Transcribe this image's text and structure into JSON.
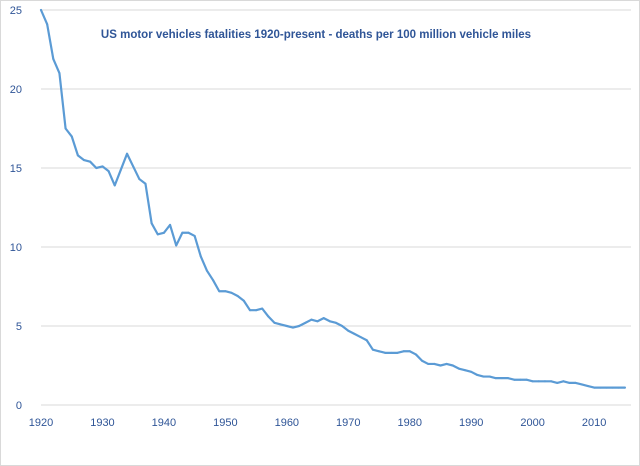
{
  "chart_data": {
    "type": "line",
    "title": "US motor vehicles fatalities 1920-present - deaths per 100 million vehicle miles",
    "xlabel": "",
    "ylabel": "",
    "xlim": [
      1920,
      2016
    ],
    "ylim": [
      0,
      25
    ],
    "x_ticks": [
      "1920",
      "1930",
      "1940",
      "1950",
      "1960",
      "1970",
      "1980",
      "1990",
      "2000",
      "2010"
    ],
    "y_ticks": [
      "0",
      "5",
      "10",
      "15",
      "20",
      "25"
    ],
    "grid": "horizontal",
    "legend": "none",
    "colors": {
      "line": "#5b9bd5",
      "text": "#2f5597",
      "grid": "#d9d9d9"
    },
    "series": [
      {
        "x": [
          1920,
          1921,
          1922,
          1923,
          1924,
          1925,
          1926,
          1927,
          1928,
          1929,
          1930,
          1931,
          1932,
          1933,
          1934,
          1935,
          1936,
          1937,
          1938,
          1939,
          1940,
          1941,
          1942,
          1943,
          1944,
          1945,
          1946,
          1947,
          1948,
          1949,
          1950,
          1951,
          1952,
          1953,
          1954,
          1955,
          1956,
          1957,
          1958,
          1959,
          1960,
          1961,
          1962,
          1963,
          1964,
          1965,
          1966,
          1967,
          1968,
          1969,
          1970,
          1971,
          1972,
          1973,
          1974,
          1975,
          1976,
          1977,
          1978,
          1979,
          1980,
          1981,
          1982,
          1983,
          1984,
          1985,
          1986,
          1987,
          1988,
          1989,
          1990,
          1991,
          1992,
          1993,
          1994,
          1995,
          1996,
          1997,
          1998,
          1999,
          2000,
          2001,
          2002,
          2003,
          2004,
          2005,
          2006,
          2007,
          2008,
          2009,
          2010,
          2011,
          2012,
          2013,
          2014,
          2015
        ],
        "values": [
          25.0,
          24.1,
          21.9,
          21.0,
          17.5,
          17.0,
          15.8,
          15.5,
          15.4,
          15.0,
          15.1,
          14.8,
          13.9,
          14.9,
          15.9,
          15.1,
          14.3,
          14.0,
          11.5,
          10.8,
          10.9,
          11.4,
          10.1,
          10.9,
          10.9,
          10.7,
          9.4,
          8.5,
          7.9,
          7.2,
          7.2,
          7.1,
          6.9,
          6.6,
          6.0,
          6.0,
          6.1,
          5.6,
          5.2,
          5.1,
          5.0,
          4.9,
          5.0,
          5.2,
          5.4,
          5.3,
          5.5,
          5.3,
          5.2,
          5.0,
          4.7,
          4.5,
          4.3,
          4.1,
          3.5,
          3.4,
          3.3,
          3.3,
          3.3,
          3.4,
          3.4,
          3.2,
          2.8,
          2.6,
          2.6,
          2.5,
          2.6,
          2.5,
          2.3,
          2.2,
          2.1,
          1.9,
          1.8,
          1.8,
          1.7,
          1.7,
          1.7,
          1.6,
          1.6,
          1.6,
          1.5,
          1.5,
          1.5,
          1.5,
          1.4,
          1.5,
          1.4,
          1.4,
          1.3,
          1.2,
          1.1,
          1.1,
          1.1,
          1.1,
          1.1,
          1.1
        ]
      }
    ]
  }
}
